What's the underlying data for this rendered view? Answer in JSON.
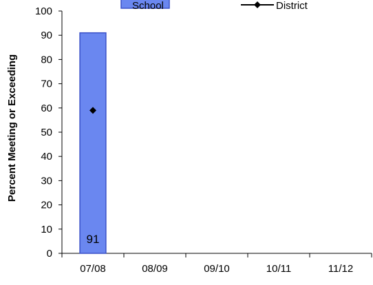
{
  "chart_data": {
    "type": "bar",
    "categories": [
      "07/08",
      "08/09",
      "09/10",
      "10/11",
      "11/12"
    ],
    "series": [
      {
        "name": "School",
        "kind": "bar",
        "values": [
          91,
          null,
          null,
          null,
          null
        ],
        "data_labels": [
          "91",
          "",
          "",
          "",
          ""
        ],
        "color": "#6a87f0",
        "border_color": "#3a50c8"
      },
      {
        "name": "District",
        "kind": "line",
        "values": [
          59,
          null,
          null,
          null,
          null
        ],
        "color": "#000000"
      }
    ],
    "ylabel": "Percent Meeting or Exceeding",
    "xlabel": "",
    "ylim": [
      0,
      100
    ],
    "yticks": [
      0,
      10,
      20,
      30,
      40,
      50,
      60,
      70,
      80,
      90,
      100
    ],
    "grid": false,
    "legend_position": "top"
  }
}
